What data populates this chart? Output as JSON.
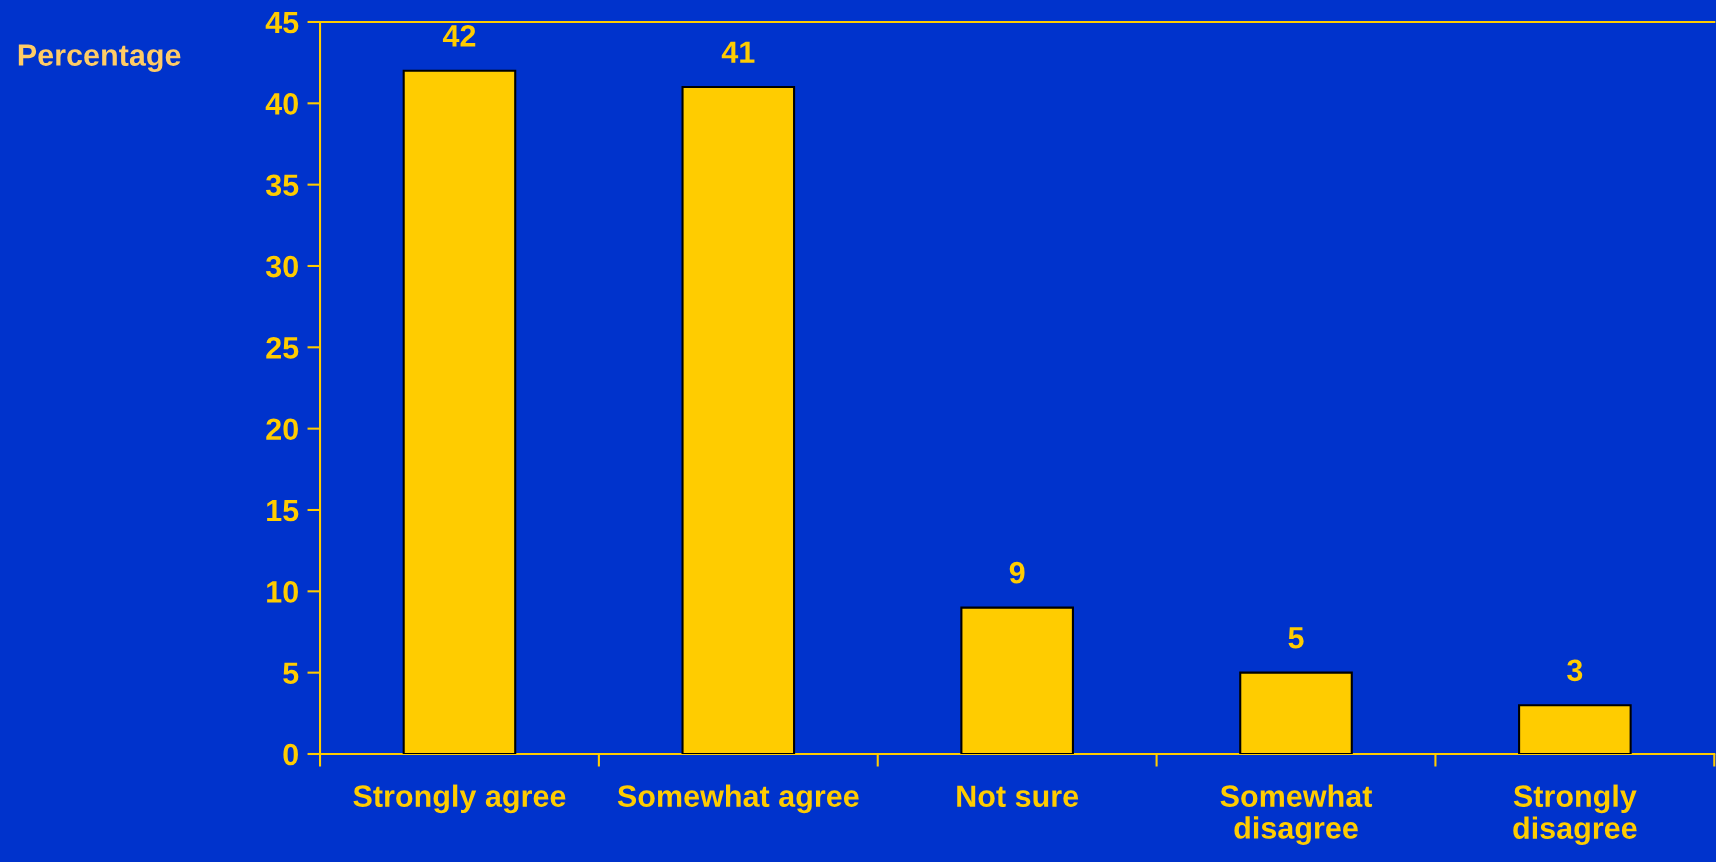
{
  "chart_data": {
    "type": "bar",
    "ylabel": "Percentage",
    "categories": [
      "Strongly agree",
      "Somewhat agree",
      "Not sure",
      "Somewhat disagree",
      "Strongly disagree"
    ],
    "values": [
      42,
      41,
      9,
      5,
      3
    ],
    "color": "#ffcc00",
    "ylim": [
      0,
      45
    ],
    "yticks": [
      0,
      5,
      10,
      15,
      20,
      25,
      30,
      35,
      40,
      45
    ],
    "data_labels": true
  }
}
